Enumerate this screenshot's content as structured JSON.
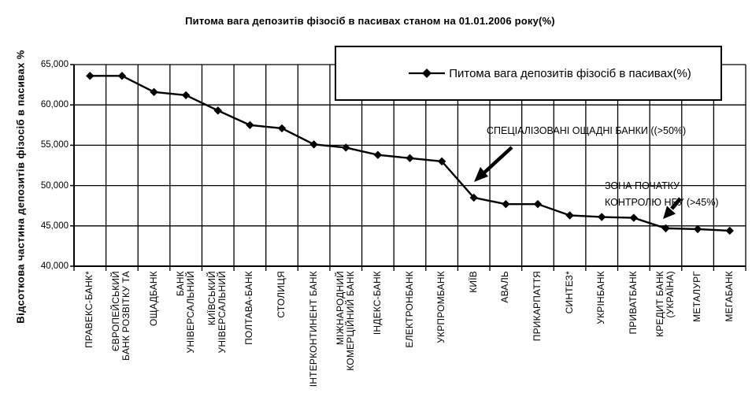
{
  "page": {
    "background": "#ffffff",
    "ink_color": "#000000"
  },
  "chart_data": {
    "type": "line",
    "title": "Питома вага депозитів фізосіб в пасивах станом на 01.01.2006 року(%)",
    "legend": {
      "label": "Питома вага депозитів фізосіб в пасивах(%)",
      "position": "top-right-overlay",
      "marker": "diamond-line"
    },
    "y_axis": {
      "title": "Відсоткова частина депозитів фізосіб в пасивах %",
      "range": [
        40,
        65
      ],
      "tick_values": [
        65,
        60,
        55,
        50,
        45,
        40
      ],
      "tick_labels": [
        "65,000",
        "60,000",
        "55,000",
        "50,000",
        "45,000",
        "40,000"
      ]
    },
    "grid": true,
    "categories": [
      "ПРАВЕКС-БАНК*",
      "ЄВРОПЕЙСЬКИЙ\nБАНК РОЗВІТКУ ТА",
      "ОЩАДБАНК",
      "БАНК\nУНІВЕРСАЛЬНИЙ",
      "КИЇВСЬКИЙ\nУНІВЕРСАЛЬНИЙ",
      "ПОЛТАВА-БАНК",
      "СТОЛИЦЯ",
      "ІНТЕРКОНТИНЕНТ БАНК",
      "МІЖНАРОДНИЙ\nКОМЕРЦІЙНИЙ БАНК",
      "ІНДЕКС-БАНК",
      "ЕЛЕКТРОНБАНК",
      "УКРПРОМБАНК",
      "КИЇВ",
      "АВАЛЬ",
      "ПРИКАРПАТТЯ",
      "СИНТЕЗ*",
      "УКРІНБАНК",
      "ПРИВАТБАНК",
      "КРЕДИТ БАНК\n(УКРАЇНА)",
      "МЕТАЛУРГ",
      "МЕГАБАНК"
    ],
    "series": [
      {
        "name": "Питома вага депозитів фізосіб в пасивах(%)",
        "marker": "diamond",
        "color": "#000000",
        "values": [
          63.6,
          63.6,
          61.6,
          61.2,
          59.3,
          57.5,
          57.1,
          55.1,
          54.7,
          53.8,
          53.4,
          53.0,
          48.5,
          47.7,
          47.7,
          46.3,
          46.1,
          46.0,
          44.7,
          44.6,
          44.4
        ]
      }
    ],
    "annotations": [
      {
        "id": "specialized-savings-banks",
        "text": "СПЕЦІАЛІЗОВАНІ ОЩАДНІ БАНКИ ((>50%)"
      },
      {
        "id": "nbu-control-zone",
        "text": "ЗОНА ПОЧАТКУ\nКОНТРОЛЮ НБУ (>45%)"
      }
    ]
  }
}
